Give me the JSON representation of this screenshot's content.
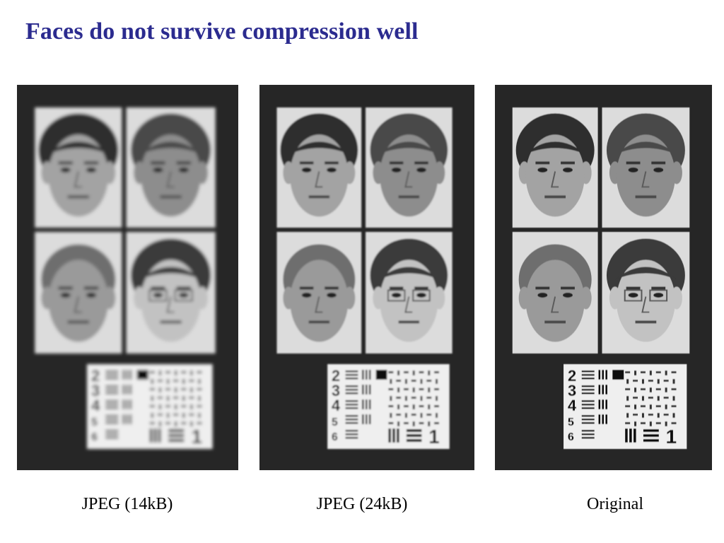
{
  "slide": {
    "title": "Faces do not survive compression well"
  },
  "panels": [
    {
      "caption": "JPEG (14kB)",
      "blur": 2.4
    },
    {
      "caption": "JPEG (24kB)",
      "blur": 1.1
    },
    {
      "caption": "Original",
      "blur": 0.4
    }
  ],
  "test_chart": {
    "row_numbers": [
      "2",
      "3",
      "4",
      "5",
      "6"
    ],
    "corner_number": "1"
  }
}
